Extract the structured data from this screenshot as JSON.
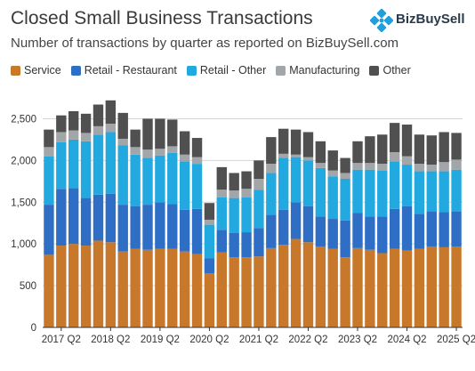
{
  "header": {
    "title": "Closed Small Business Transactions",
    "subtitle": "Number of transactions by quarter as reported on BizBuySell.com",
    "logo_text": "BizBuySell"
  },
  "chart_data": {
    "type": "bar",
    "stacked": true,
    "title": "Closed Small Business Transactions",
    "subtitle": "Number of transactions by quarter as reported on BizBuySell.com",
    "xlabel": "",
    "ylabel": "",
    "ylim": [
      0,
      2750
    ],
    "yticks": [
      0,
      500,
      1000,
      1500,
      2000,
      2500
    ],
    "ytick_labels": [
      "0",
      "500",
      "1,000",
      "1,500",
      "2,000",
      "2,500"
    ],
    "grid": "horizontal",
    "legend_position": "top-left",
    "xtick_labels": [
      "2017 Q2",
      "2018 Q2",
      "2019 Q2",
      "2020 Q2",
      "2021 Q2",
      "2022 Q2",
      "2023 Q2",
      "2024 Q2",
      "2025 Q2"
    ],
    "xtick_indices": [
      1,
      5,
      9,
      13,
      17,
      21,
      25,
      29,
      33
    ],
    "categories": [
      "2017 Q1",
      "2017 Q2",
      "2017 Q3",
      "2017 Q4",
      "2018 Q1",
      "2018 Q2",
      "2018 Q3",
      "2018 Q4",
      "2019 Q1",
      "2019 Q2",
      "2019 Q3",
      "2019 Q4",
      "2020 Q1",
      "2020 Q2",
      "2020 Q3",
      "2020 Q4",
      "2021 Q1",
      "2021 Q2",
      "2021 Q3",
      "2021 Q4",
      "2022 Q1",
      "2022 Q2",
      "2022 Q3",
      "2022 Q4",
      "2023 Q1",
      "2023 Q2",
      "2023 Q3",
      "2023 Q4",
      "2024 Q1",
      "2024 Q2",
      "2024 Q3",
      "2024 Q4",
      "2025 Q1",
      "2025 Q2"
    ],
    "series": [
      {
        "name": "Service",
        "color": "#c8782b",
        "values": [
          870,
          980,
          1000,
          980,
          1040,
          1020,
          910,
          940,
          930,
          940,
          940,
          910,
          880,
          650,
          900,
          840,
          840,
          850,
          950,
          990,
          1060,
          1020,
          970,
          940,
          840,
          950,
          930,
          890,
          940,
          920,
          940,
          970,
          960,
          970
        ]
      },
      {
        "name": "Retail - Restaurant",
        "color": "#2e6fc5",
        "values": [
          600,
          680,
          670,
          570,
          550,
          580,
          560,
          510,
          540,
          560,
          540,
          500,
          540,
          180,
          270,
          290,
          300,
          340,
          400,
          420,
          440,
          430,
          360,
          360,
          440,
          420,
          400,
          440,
          480,
          530,
          420,
          420,
          420,
          420
        ]
      },
      {
        "name": "Retail - Other",
        "color": "#22a9e0",
        "values": [
          580,
          560,
          580,
          680,
          720,
          740,
          710,
          620,
          560,
          560,
          610,
          580,
          540,
          400,
          390,
          420,
          420,
          460,
          500,
          620,
          540,
          550,
          580,
          510,
          500,
          520,
          560,
          550,
          570,
          500,
          510,
          480,
          490,
          500
        ]
      },
      {
        "name": "Manufacturing",
        "color": "#a3a6a9",
        "values": [
          110,
          120,
          110,
          100,
          100,
          100,
          80,
          90,
          100,
          80,
          80,
          80,
          80,
          60,
          90,
          90,
          100,
          130,
          110,
          50,
          30,
          40,
          60,
          70,
          70,
          80,
          80,
          80,
          110,
          100,
          90,
          80,
          110,
          120
        ]
      },
      {
        "name": "Other",
        "color": "#505050",
        "values": [
          210,
          200,
          230,
          230,
          260,
          280,
          310,
          210,
          370,
          360,
          320,
          280,
          230,
          200,
          270,
          210,
          210,
          220,
          320,
          300,
          300,
          300,
          260,
          240,
          180,
          260,
          320,
          350,
          350,
          380,
          350,
          350,
          360,
          320
        ]
      }
    ]
  }
}
